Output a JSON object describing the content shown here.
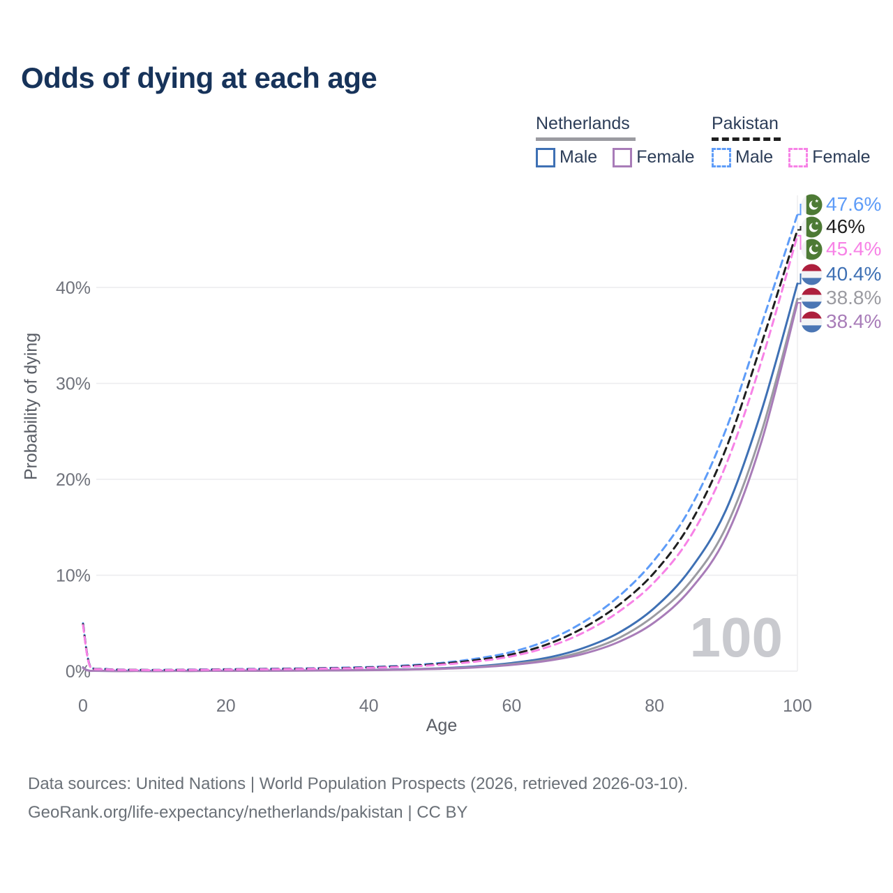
{
  "title": "Odds of dying at each age",
  "legend": {
    "groups": [
      {
        "label": "Netherlands",
        "line_style": "solid",
        "line_color": "#9b9ba1",
        "items": [
          {
            "label": "Male",
            "color": "#3e70b4"
          },
          {
            "label": "Female",
            "color": "#a87cb8"
          }
        ]
      },
      {
        "label": "Pakistan",
        "line_style": "dashed",
        "line_color": "#1f1f1f",
        "items": [
          {
            "label": "Male",
            "color": "#5e9cf8"
          },
          {
            "label": "Female",
            "color": "#f782e6"
          }
        ]
      }
    ]
  },
  "chart_data": {
    "type": "line",
    "title": "Odds of dying at each age",
    "xlabel": "Age",
    "ylabel": "Probability of dying",
    "xlim": [
      0,
      100
    ],
    "ylim_pct": [
      0,
      48
    ],
    "x_ticks": [
      0,
      20,
      40,
      60,
      80,
      100
    ],
    "x_tick_labels": [
      "0",
      "20",
      "40",
      "60",
      "80",
      "100"
    ],
    "y_ticks": [
      0,
      10,
      20,
      30,
      40
    ],
    "y_tick_labels": [
      "0%",
      "10%",
      "20%",
      "30%",
      "40%"
    ],
    "grid": "horizontal",
    "watermark": "100",
    "legend_position": "top-right",
    "series": [
      {
        "id": "pakistan-male",
        "name": "Pakistan Male",
        "country": "Pakistan",
        "sex": "male",
        "color": "#5e9cf8",
        "dashed": true,
        "flag": "pakistan",
        "end_label": "47.6%",
        "points": [
          [
            0,
            5.0
          ],
          [
            1,
            0.52
          ],
          [
            3,
            0.24
          ],
          [
            5,
            0.16
          ],
          [
            10,
            0.13
          ],
          [
            15,
            0.16
          ],
          [
            20,
            0.2
          ],
          [
            25,
            0.24
          ],
          [
            30,
            0.28
          ],
          [
            35,
            0.34
          ],
          [
            40,
            0.43
          ],
          [
            45,
            0.58
          ],
          [
            50,
            0.85
          ],
          [
            55,
            1.3
          ],
          [
            60,
            2.0
          ],
          [
            65,
            3.2
          ],
          [
            70,
            5.1
          ],
          [
            75,
            7.8
          ],
          [
            80,
            11.6
          ],
          [
            85,
            17.0
          ],
          [
            90,
            25.2
          ],
          [
            95,
            36.2
          ],
          [
            100,
            47.6
          ]
        ]
      },
      {
        "id": "pakistan",
        "name": "Pakistan",
        "country": "Pakistan",
        "sex": "both",
        "color": "#1f1f1f",
        "dashed": true,
        "flag": "pakistan",
        "end_label": "46%",
        "points": [
          [
            0,
            4.9
          ],
          [
            1,
            0.49
          ],
          [
            3,
            0.22
          ],
          [
            5,
            0.15
          ],
          [
            10,
            0.12
          ],
          [
            15,
            0.14
          ],
          [
            20,
            0.18
          ],
          [
            25,
            0.21
          ],
          [
            30,
            0.25
          ],
          [
            35,
            0.3
          ],
          [
            40,
            0.38
          ],
          [
            45,
            0.52
          ],
          [
            50,
            0.76
          ],
          [
            55,
            1.15
          ],
          [
            60,
            1.75
          ],
          [
            65,
            2.8
          ],
          [
            70,
            4.5
          ],
          [
            75,
            6.9
          ],
          [
            80,
            10.3
          ],
          [
            85,
            15.4
          ],
          [
            90,
            23.2
          ],
          [
            95,
            34.2
          ],
          [
            100,
            46.0
          ]
        ]
      },
      {
        "id": "pakistan-female",
        "name": "Pakistan Female",
        "country": "Pakistan",
        "sex": "female",
        "color": "#f782e6",
        "dashed": true,
        "flag": "pakistan",
        "end_label": "45.4%",
        "points": [
          [
            0,
            4.8
          ],
          [
            1,
            0.46
          ],
          [
            3,
            0.2
          ],
          [
            5,
            0.14
          ],
          [
            10,
            0.11
          ],
          [
            15,
            0.13
          ],
          [
            20,
            0.16
          ],
          [
            25,
            0.19
          ],
          [
            30,
            0.22
          ],
          [
            35,
            0.27
          ],
          [
            40,
            0.34
          ],
          [
            45,
            0.46
          ],
          [
            50,
            0.67
          ],
          [
            55,
            1.0
          ],
          [
            60,
            1.55
          ],
          [
            65,
            2.5
          ],
          [
            70,
            4.0
          ],
          [
            75,
            6.2
          ],
          [
            80,
            9.3
          ],
          [
            85,
            14.0
          ],
          [
            90,
            21.5
          ],
          [
            95,
            32.4
          ],
          [
            100,
            45.4
          ]
        ]
      },
      {
        "id": "netherlands-male",
        "name": "Netherlands Male",
        "country": "Netherlands",
        "sex": "male",
        "color": "#3e70b4",
        "dashed": false,
        "flag": "netherlands",
        "end_label": "40.4%",
        "points": [
          [
            0,
            0.4
          ],
          [
            1,
            0.04
          ],
          [
            5,
            0.015
          ],
          [
            10,
            0.015
          ],
          [
            15,
            0.03
          ],
          [
            20,
            0.05
          ],
          [
            25,
            0.06
          ],
          [
            30,
            0.07
          ],
          [
            35,
            0.09
          ],
          [
            40,
            0.13
          ],
          [
            45,
            0.19
          ],
          [
            50,
            0.3
          ],
          [
            55,
            0.5
          ],
          [
            60,
            0.85
          ],
          [
            65,
            1.4
          ],
          [
            70,
            2.4
          ],
          [
            75,
            4.0
          ],
          [
            80,
            6.6
          ],
          [
            85,
            10.6
          ],
          [
            90,
            16.8
          ],
          [
            95,
            27.2
          ],
          [
            100,
            40.4
          ]
        ]
      },
      {
        "id": "netherlands",
        "name": "Netherlands",
        "country": "Netherlands",
        "sex": "both",
        "color": "#9b9ba1",
        "dashed": false,
        "flag": "netherlands",
        "end_label": "38.8%",
        "points": [
          [
            0,
            0.38
          ],
          [
            1,
            0.035
          ],
          [
            5,
            0.012
          ],
          [
            10,
            0.012
          ],
          [
            15,
            0.025
          ],
          [
            20,
            0.04
          ],
          [
            25,
            0.05
          ],
          [
            30,
            0.06
          ],
          [
            35,
            0.08
          ],
          [
            40,
            0.11
          ],
          [
            45,
            0.16
          ],
          [
            50,
            0.26
          ],
          [
            55,
            0.43
          ],
          [
            60,
            0.73
          ],
          [
            65,
            1.2
          ],
          [
            70,
            2.05
          ],
          [
            75,
            3.45
          ],
          [
            80,
            5.8
          ],
          [
            85,
            9.3
          ],
          [
            90,
            15.0
          ],
          [
            95,
            25.0
          ],
          [
            100,
            38.8
          ]
        ]
      },
      {
        "id": "netherlands-female",
        "name": "Netherlands Female",
        "country": "Netherlands",
        "sex": "female",
        "color": "#a87cb8",
        "dashed": false,
        "flag": "netherlands",
        "end_label": "38.4%",
        "points": [
          [
            0,
            0.35
          ],
          [
            1,
            0.03
          ],
          [
            5,
            0.01
          ],
          [
            10,
            0.01
          ],
          [
            15,
            0.02
          ],
          [
            20,
            0.03
          ],
          [
            25,
            0.04
          ],
          [
            30,
            0.055
          ],
          [
            35,
            0.075
          ],
          [
            40,
            0.1
          ],
          [
            45,
            0.15
          ],
          [
            50,
            0.24
          ],
          [
            55,
            0.39
          ],
          [
            60,
            0.65
          ],
          [
            65,
            1.08
          ],
          [
            70,
            1.8
          ],
          [
            75,
            3.05
          ],
          [
            80,
            5.1
          ],
          [
            85,
            8.5
          ],
          [
            90,
            14.0
          ],
          [
            95,
            24.0
          ],
          [
            100,
            38.4
          ]
        ]
      }
    ]
  },
  "flags": {
    "pakistan": {
      "green": "#4d7a35",
      "white": "#f2f3f5"
    },
    "netherlands": {
      "red": "#ad1f3d",
      "white": "#f2f3f5",
      "blue": "#4b76b4"
    }
  },
  "footer": {
    "line1": "Data sources: United Nations | World Population Prospects (2026, retrieved 2026-03-10).",
    "line2": "GeoRank.org/life-expectancy/netherlands/pakistan | CC BY"
  }
}
